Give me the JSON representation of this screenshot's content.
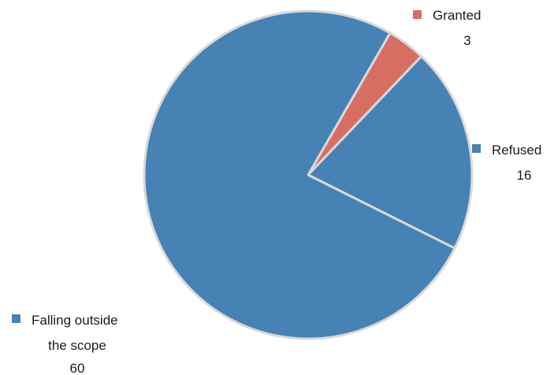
{
  "chart_data": {
    "type": "pie",
    "title": "",
    "slices": [
      {
        "label": "Granted",
        "value": 3,
        "color": "#D66F62"
      },
      {
        "label": "Refused",
        "value": 16,
        "color": "#4682B4"
      },
      {
        "label": "Falling outside the scope",
        "value": 60,
        "color": "#4682B4"
      }
    ],
    "start_angle_deg": 30,
    "direction": "clockwise",
    "slice_border_color": "#D9D9D9",
    "legend": "labels placed beside slices with color markers"
  }
}
